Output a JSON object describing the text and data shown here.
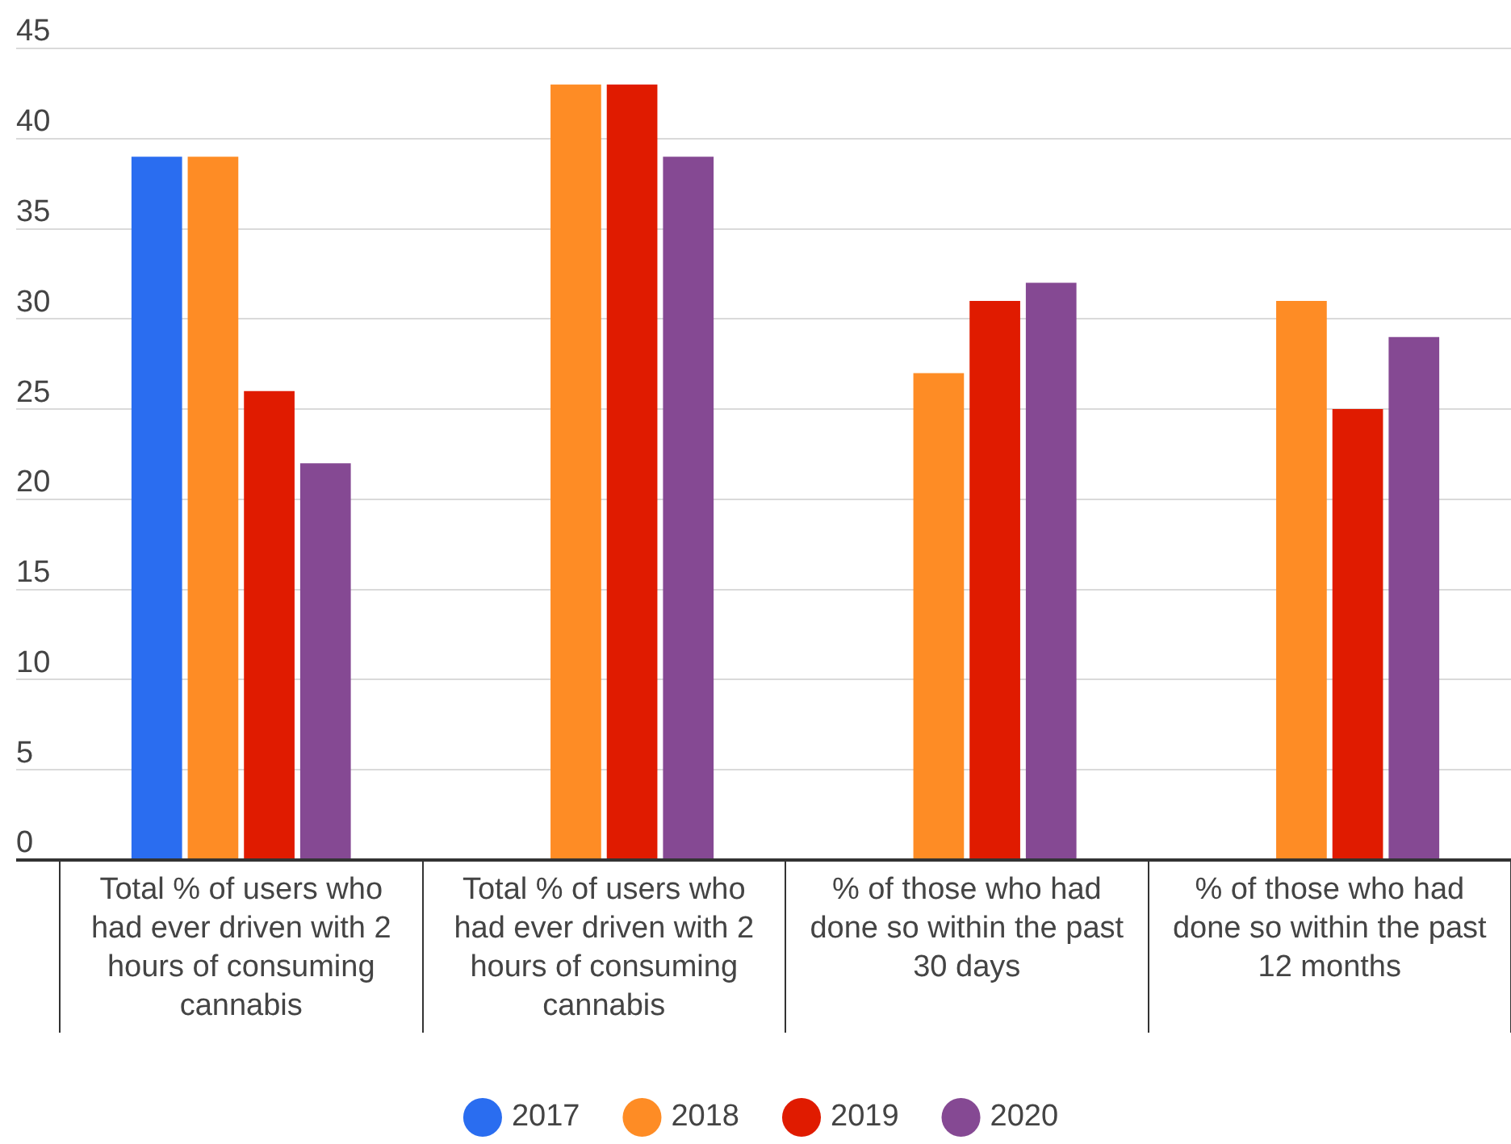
{
  "chart_data": {
    "type": "bar",
    "categories": [
      "Total % of users who had ever driven with 2 hours of consuming cannabis",
      "Total % of users who had ever driven with 2 hours of consuming cannabis",
      "% of those who had done so within the past 30 days",
      "% of those who had done so within the past 12 months"
    ],
    "series": [
      {
        "name": "2017",
        "color": "#2a6df0",
        "values": [
          39,
          null,
          null,
          null
        ]
      },
      {
        "name": "2018",
        "color": "#fe8c25",
        "values": [
          39,
          43,
          27,
          31
        ]
      },
      {
        "name": "2019",
        "color": "#e01b00",
        "values": [
          26,
          43,
          31,
          25
        ]
      },
      {
        "name": "2020",
        "color": "#854993",
        "values": [
          22,
          39,
          32,
          29
        ]
      }
    ],
    "ylim": [
      0,
      45
    ],
    "yticks": [
      0,
      5,
      10,
      15,
      20,
      25,
      30,
      35,
      40,
      45
    ],
    "grid": "y",
    "legend": "bottom"
  }
}
